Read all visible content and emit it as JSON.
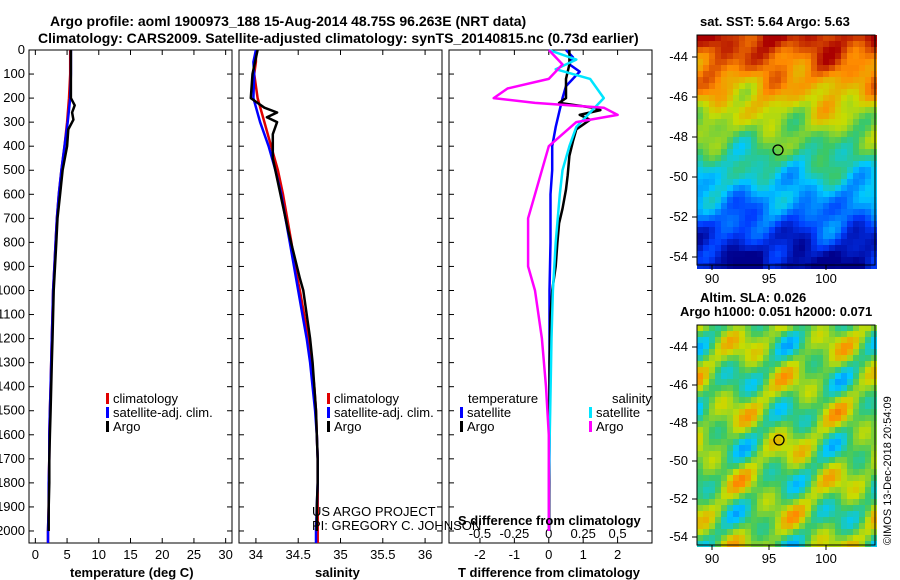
{
  "title": {
    "line1": "Argo profile: aoml 1900973_188 15-Aug-2014 48.75S 96.263E (NRT data)",
    "line2": "Climatology: CARS2009. Satellite-adjusted climatology: synTS_20140815.nc (0.73d earlier)"
  },
  "colors": {
    "climatology": "#e00000",
    "satellite": "#0000ff",
    "argo": "#000000",
    "s_satellite": "#00e5ff",
    "s_argo": "#ff00ff"
  },
  "depth_ticks": [
    0,
    100,
    200,
    300,
    400,
    500,
    600,
    700,
    800,
    900,
    1000,
    1100,
    1200,
    1300,
    1400,
    1500,
    1600,
    1700,
    1800,
    1900,
    2000
  ],
  "credits": {
    "line1": "US ARGO PROJECT",
    "line2": "PI: GREGORY C. JOHNSON"
  },
  "timestamp": "©IMOS 13-Dec-2018 20:54:09",
  "sst_map": {
    "title": "sat. SST: 5.64 Argo: 5.63",
    "lat_ticks": [
      "-44",
      "-46",
      "-48",
      "-50",
      "-52",
      "-54"
    ],
    "lon_ticks": [
      "90",
      "95",
      "100"
    ]
  },
  "sla_map": {
    "title1": "Altim. SLA: 0.026",
    "title2": "Argo h1000: 0.051 h2000: 0.071",
    "lat_ticks": [
      "-44",
      "-46",
      "-48",
      "-50",
      "-52",
      "-54"
    ],
    "lon_ticks": [
      "90",
      "95",
      "100"
    ]
  },
  "chart_data": [
    {
      "type": "line",
      "xlabel": "temperature (deg C)",
      "ylabel": "",
      "xlim": [
        -1,
        31
      ],
      "ylim": [
        2050,
        0
      ],
      "y_reversed": true,
      "x_ticks": [
        "0",
        "5",
        "10",
        "15",
        "20",
        "25",
        "30"
      ],
      "legend": [
        "climatology",
        "satellite-adj. clim.",
        "Argo"
      ],
      "series": [
        {
          "name": "climatology",
          "color": "#e00000",
          "points": [
            [
              5.5,
              0
            ],
            [
              5.5,
              100
            ],
            [
              5.3,
              200
            ],
            [
              5.0,
              300
            ],
            [
              4.6,
              400
            ],
            [
              4.1,
              500
            ],
            [
              3.7,
              600
            ],
            [
              3.4,
              700
            ],
            [
              3.2,
              800
            ],
            [
              3.0,
              900
            ],
            [
              2.8,
              1000
            ],
            [
              2.7,
              1100
            ],
            [
              2.6,
              1200
            ],
            [
              2.5,
              1300
            ],
            [
              2.4,
              1400
            ],
            [
              2.3,
              1500
            ],
            [
              2.2,
              1600
            ],
            [
              2.2,
              1700
            ],
            [
              2.1,
              1800
            ],
            [
              2.1,
              1900
            ],
            [
              2.0,
              2000
            ],
            [
              2.0,
              2050
            ]
          ]
        },
        {
          "name": "satellite-adj. clim.",
          "color": "#0000ff",
          "points": [
            [
              5.6,
              0
            ],
            [
              5.6,
              100
            ],
            [
              5.5,
              200
            ],
            [
              5.1,
              300
            ],
            [
              4.6,
              400
            ],
            [
              4.1,
              500
            ],
            [
              3.7,
              600
            ],
            [
              3.4,
              700
            ],
            [
              3.2,
              800
            ],
            [
              3.0,
              900
            ],
            [
              2.8,
              1000
            ],
            [
              2.7,
              1100
            ],
            [
              2.6,
              1200
            ],
            [
              2.5,
              1300
            ],
            [
              2.4,
              1400
            ],
            [
              2.3,
              1500
            ],
            [
              2.2,
              1600
            ],
            [
              2.2,
              1700
            ],
            [
              2.1,
              1800
            ],
            [
              2.1,
              1900
            ],
            [
              2.0,
              2000
            ],
            [
              2.0,
              2050
            ]
          ]
        },
        {
          "name": "Argo",
          "color": "#000000",
          "points": [
            [
              5.6,
              0
            ],
            [
              5.6,
              100
            ],
            [
              5.6,
              200
            ],
            [
              6.2,
              230
            ],
            [
              5.8,
              260
            ],
            [
              6.0,
              290
            ],
            [
              5.2,
              330
            ],
            [
              5.0,
              400
            ],
            [
              4.3,
              500
            ],
            [
              3.9,
              600
            ],
            [
              3.5,
              700
            ],
            [
              3.3,
              800
            ],
            [
              3.1,
              900
            ],
            [
              2.9,
              1000
            ],
            [
              2.8,
              1100
            ],
            [
              2.7,
              1200
            ],
            [
              2.6,
              1300
            ],
            [
              2.5,
              1400
            ],
            [
              2.4,
              1500
            ],
            [
              2.3,
              1600
            ],
            [
              2.2,
              1700
            ],
            [
              2.2,
              1800
            ],
            [
              2.1,
              1900
            ],
            [
              2.1,
              2000
            ]
          ]
        }
      ]
    },
    {
      "type": "line",
      "xlabel": "salinity",
      "ylabel": "",
      "xlim": [
        33.8,
        36.2
      ],
      "ylim": [
        2050,
        0
      ],
      "y_reversed": true,
      "x_ticks": [
        "34",
        "34.5",
        "35",
        "35.5",
        "36"
      ],
      "legend": [
        "climatology",
        "satellite-adj. clim.",
        "Argo"
      ],
      "series": [
        {
          "name": "climatology",
          "color": "#e00000",
          "points": [
            [
              34.0,
              0
            ],
            [
              34.0,
              50
            ],
            [
              33.98,
              100
            ],
            [
              34.02,
              200
            ],
            [
              34.1,
              300
            ],
            [
              34.18,
              400
            ],
            [
              34.26,
              500
            ],
            [
              34.32,
              600
            ],
            [
              34.37,
              700
            ],
            [
              34.42,
              800
            ],
            [
              34.46,
              900
            ],
            [
              34.52,
              1000
            ],
            [
              34.57,
              1100
            ],
            [
              34.62,
              1200
            ],
            [
              34.66,
              1300
            ],
            [
              34.69,
              1400
            ],
            [
              34.71,
              1500
            ],
            [
              34.72,
              1600
            ],
            [
              34.73,
              1700
            ],
            [
              34.73,
              1800
            ],
            [
              34.73,
              1900
            ],
            [
              34.73,
              2000
            ],
            [
              34.73,
              2050
            ]
          ]
        },
        {
          "name": "satellite-adj. clim.",
          "color": "#0000ff",
          "points": [
            [
              34.0,
              0
            ],
            [
              33.97,
              50
            ],
            [
              33.98,
              100
            ],
            [
              33.97,
              200
            ],
            [
              34.05,
              300
            ],
            [
              34.15,
              400
            ],
            [
              34.23,
              500
            ],
            [
              34.3,
              600
            ],
            [
              34.35,
              700
            ],
            [
              34.4,
              800
            ],
            [
              34.45,
              900
            ],
            [
              34.5,
              1000
            ],
            [
              34.55,
              1100
            ],
            [
              34.6,
              1200
            ],
            [
              34.64,
              1300
            ],
            [
              34.67,
              1400
            ],
            [
              34.7,
              1500
            ],
            [
              34.72,
              1600
            ],
            [
              34.73,
              1700
            ],
            [
              34.73,
              1800
            ],
            [
              34.72,
              1900
            ],
            [
              34.71,
              2000
            ],
            [
              34.71,
              2050
            ]
          ]
        },
        {
          "name": "Argo",
          "color": "#000000",
          "points": [
            [
              34.02,
              0
            ],
            [
              33.96,
              100
            ],
            [
              33.94,
              200
            ],
            [
              34.1,
              240
            ],
            [
              34.25,
              260
            ],
            [
              34.13,
              280
            ],
            [
              34.25,
              300
            ],
            [
              34.2,
              350
            ],
            [
              34.2,
              450
            ],
            [
              34.26,
              550
            ],
            [
              34.32,
              650
            ],
            [
              34.38,
              750
            ],
            [
              34.45,
              850
            ],
            [
              34.52,
              950
            ],
            [
              34.56,
              1000
            ],
            [
              34.6,
              1100
            ],
            [
              34.64,
              1200
            ],
            [
              34.67,
              1300
            ],
            [
              34.69,
              1400
            ],
            [
              34.71,
              1500
            ],
            [
              34.72,
              1600
            ],
            [
              34.73,
              1700
            ],
            [
              34.73,
              1800
            ],
            [
              34.72,
              1900
            ],
            [
              34.72,
              2000
            ]
          ]
        }
      ]
    },
    {
      "type": "line",
      "xlabel": "T difference from climatology",
      "x2label": "S difference from climatology",
      "xlim": [
        -2.9,
        3.0
      ],
      "ylim": [
        2050,
        0
      ],
      "y_reversed": true,
      "x_ticks": [
        "-2",
        "-1",
        "0",
        "1",
        "2"
      ],
      "x2_ticks": [
        "-0.5",
        "-0.25",
        "0",
        "0.25",
        "0.5"
      ],
      "legend_left_title": "temperature",
      "legend_right_title": "salinity",
      "legend_left": [
        "satellite",
        "Argo"
      ],
      "legend_right": [
        "satellite",
        "Argo"
      ],
      "series": [
        {
          "name": "temperature satellite",
          "color": "#0000ff",
          "points": [
            [
              0.5,
              0
            ],
            [
              0.7,
              30
            ],
            [
              0.6,
              60
            ],
            [
              0.9,
              90
            ],
            [
              0.5,
              150
            ],
            [
              0.4,
              200
            ],
            [
              0.3,
              260
            ],
            [
              0.2,
              320
            ],
            [
              0.1,
              400
            ],
            [
              0.1,
              500
            ],
            [
              0.05,
              600
            ],
            [
              0.05,
              800
            ],
            [
              0.02,
              1000
            ],
            [
              0.02,
              1300
            ],
            [
              0.02,
              1600
            ],
            [
              0.01,
              2000
            ]
          ]
        },
        {
          "name": "temperature Argo",
          "color": "#000000",
          "points": [
            [
              0.6,
              0
            ],
            [
              0.6,
              60
            ],
            [
              0.5,
              120
            ],
            [
              0.5,
              200
            ],
            [
              0.3,
              220
            ],
            [
              1.3,
              240
            ],
            [
              1.5,
              250
            ],
            [
              0.9,
              270
            ],
            [
              1.2,
              290
            ],
            [
              0.8,
              330
            ],
            [
              0.7,
              380
            ],
            [
              0.6,
              440
            ],
            [
              0.55,
              520
            ],
            [
              0.5,
              580
            ],
            [
              0.4,
              660
            ],
            [
              0.3,
              720
            ],
            [
              0.25,
              800
            ],
            [
              0.2,
              900
            ],
            [
              0.1,
              1000
            ],
            [
              0.05,
              1100
            ],
            [
              0.02,
              1300
            ],
            [
              0.02,
              1500
            ],
            [
              0.01,
              1800
            ],
            [
              0.01,
              2000
            ]
          ]
        },
        {
          "name": "salinity satellite",
          "color": "#00e5ff",
          "points": [
            [
              0.0,
              0
            ],
            [
              0.2,
              40
            ],
            [
              0.05,
              80
            ],
            [
              0.3,
              120
            ],
            [
              0.4,
              200
            ],
            [
              0.3,
              260
            ],
            [
              0.2,
              320
            ],
            [
              0.15,
              400
            ],
            [
              0.1,
              500
            ],
            [
              0.08,
              600
            ],
            [
              0.05,
              800
            ],
            [
              0.03,
              1000
            ],
            [
              0.02,
              1200
            ],
            [
              0.01,
              1500
            ],
            [
              0.0,
              1800
            ],
            [
              0.0,
              2000
            ]
          ]
        },
        {
          "name": "salinity Argo",
          "color": "#ff00ff",
          "points": [
            [
              0.0,
              0
            ],
            [
              0.1,
              60
            ],
            [
              0.0,
              120
            ],
            [
              -0.3,
              160
            ],
            [
              -0.4,
              200
            ],
            [
              -0.1,
              220
            ],
            [
              0.4,
              240
            ],
            [
              0.5,
              270
            ],
            [
              0.2,
              300
            ],
            [
              0.0,
              400
            ],
            [
              -0.05,
              500
            ],
            [
              -0.1,
              600
            ],
            [
              -0.15,
              700
            ],
            [
              -0.15,
              900
            ],
            [
              -0.1,
              1000
            ],
            [
              -0.05,
              1200
            ],
            [
              -0.02,
              1400
            ],
            [
              0.0,
              1600
            ],
            [
              0.0,
              2000
            ]
          ]
        }
      ]
    }
  ]
}
